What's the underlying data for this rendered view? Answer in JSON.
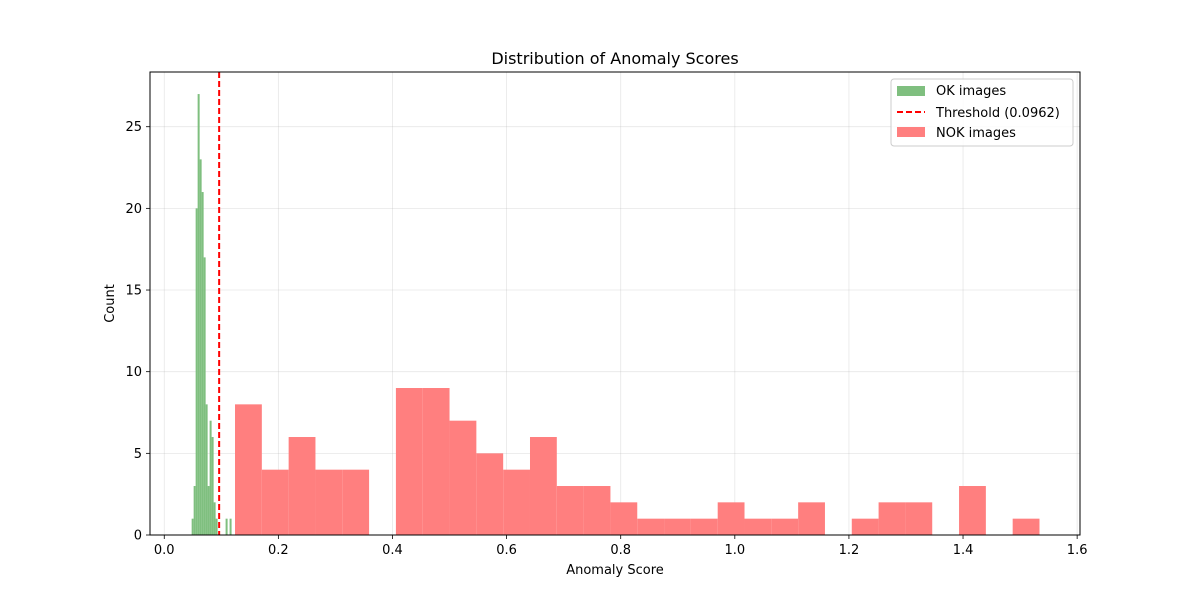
{
  "chart_data": {
    "type": "bar",
    "title": "Distribution of Anomaly Scores",
    "xlabel": "Anomaly Score",
    "ylabel": "Count",
    "xlim": [
      -0.025,
      1.605
    ],
    "ylim": [
      0,
      28.35
    ],
    "xticks": [
      0.0,
      0.2,
      0.4,
      0.6,
      0.8,
      1.0,
      1.2,
      1.4,
      1.6
    ],
    "xtick_labels": [
      "0.0",
      "0.2",
      "0.4",
      "0.6",
      "0.8",
      "1.0",
      "1.2",
      "1.4",
      "1.6"
    ],
    "yticks": [
      0,
      5,
      10,
      15,
      20,
      25
    ],
    "ytick_labels": [
      "0",
      "5",
      "10",
      "15",
      "20",
      "25"
    ],
    "grid": true,
    "legend_position": "top-right",
    "legend": [
      "OK images",
      "Threshold (0.0962)",
      "NOK images"
    ],
    "series": [
      {
        "name": "OK images",
        "color": "#7fbf7f",
        "bin_width": 0.0035,
        "bin_starts": [
          0.048,
          0.0515,
          0.055,
          0.0585,
          0.062,
          0.0655,
          0.069,
          0.0725,
          0.076,
          0.0795,
          0.083,
          0.0865,
          0.09,
          0.0935,
          0.097,
          0.1005,
          0.104,
          0.1075,
          0.111,
          0.1145
        ],
        "values": [
          1,
          3,
          20,
          27,
          23,
          21,
          17,
          8,
          3,
          7,
          6,
          2,
          1,
          0,
          0,
          0,
          0,
          1,
          0,
          1
        ]
      },
      {
        "name": "Threshold (0.0962)",
        "type": "vline",
        "x": 0.0962,
        "color": "#ff0000",
        "style": "dashed"
      },
      {
        "name": "NOK images",
        "color": "#ff7f7f",
        "bin_width": 0.047,
        "bin_starts": [
          0.124,
          0.171,
          0.218,
          0.265,
          0.312,
          0.359,
          0.406,
          0.453,
          0.5,
          0.547,
          0.594,
          0.641,
          0.688,
          0.735,
          0.782,
          0.829,
          0.876,
          0.923,
          0.97,
          1.017,
          1.064,
          1.111,
          1.158,
          1.205,
          1.252,
          1.299,
          1.346,
          1.393,
          1.44,
          1.487
        ],
        "values": [
          8,
          4,
          6,
          4,
          4,
          0,
          9,
          9,
          7,
          5,
          4,
          6,
          3,
          3,
          2,
          1,
          1,
          1,
          2,
          1,
          1,
          2,
          0,
          1,
          2,
          2,
          0,
          3,
          0,
          1
        ]
      }
    ]
  }
}
